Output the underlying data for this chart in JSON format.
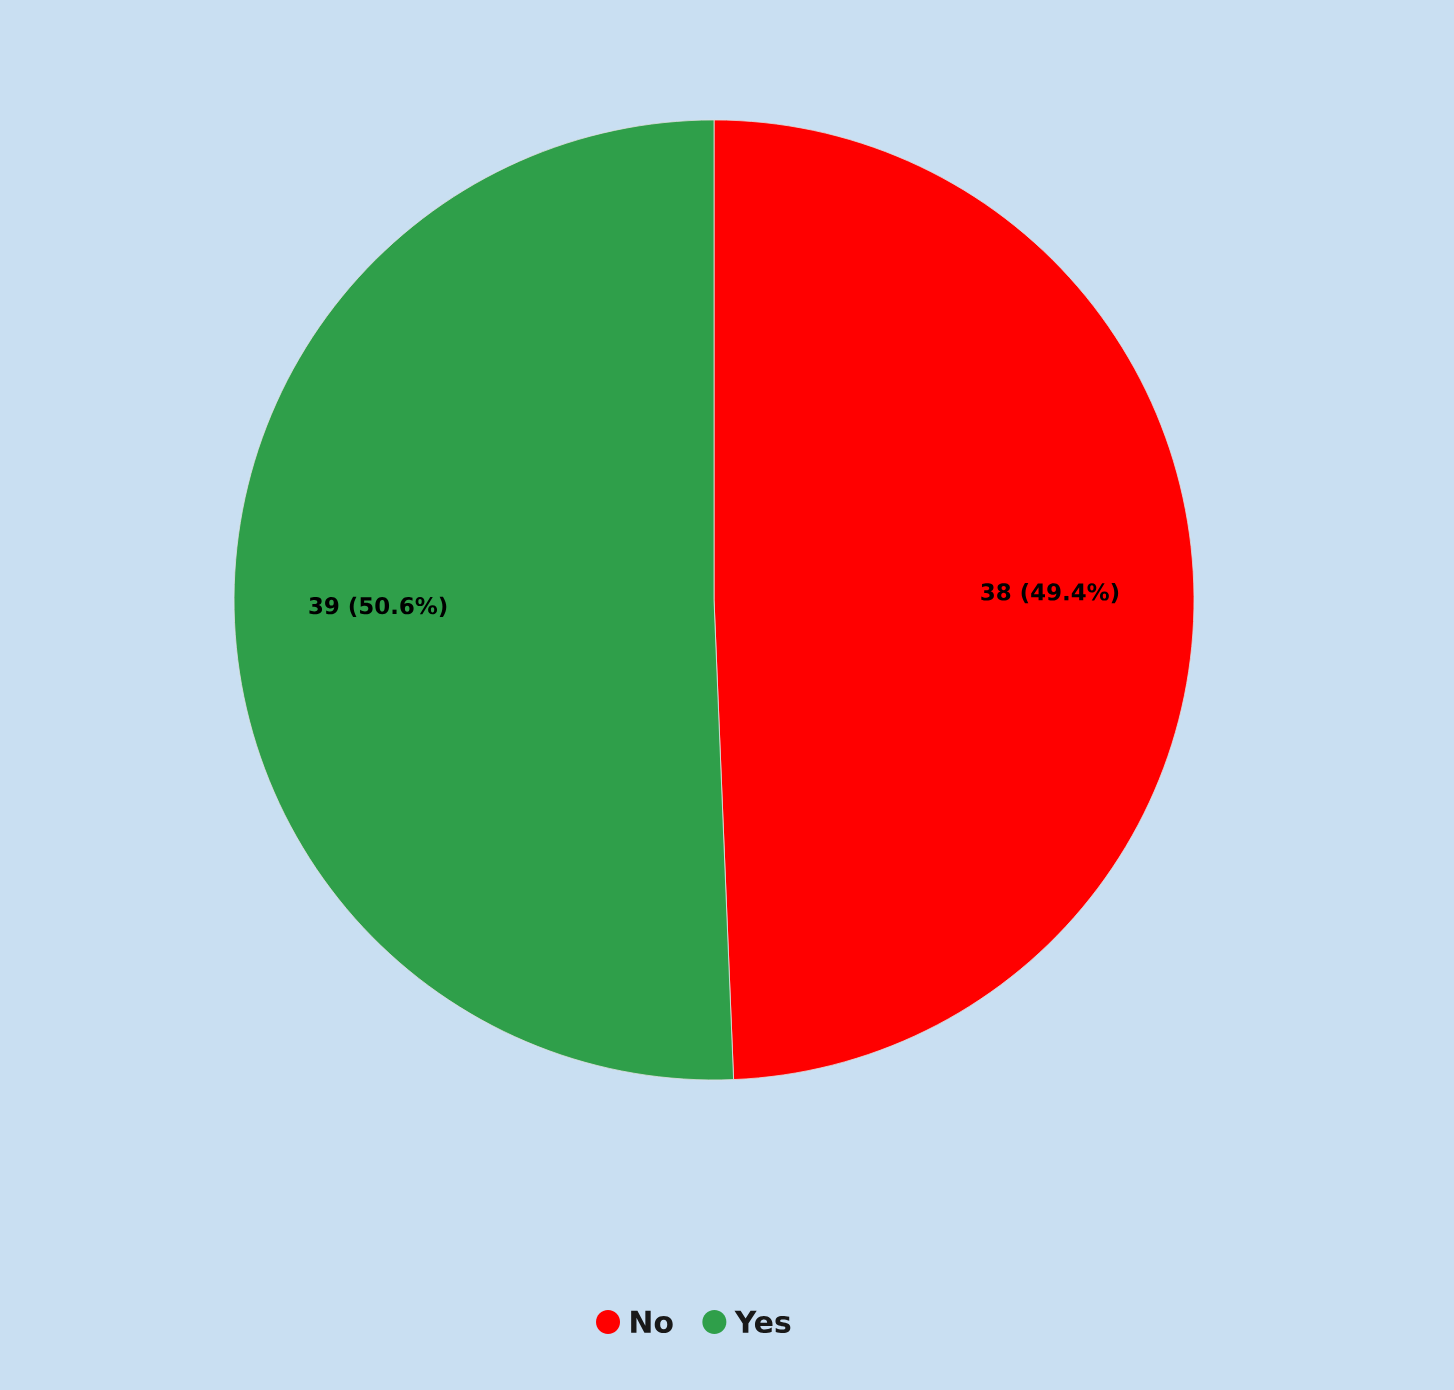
{
  "chart_data": {
    "type": "pie",
    "categories": [
      "No",
      "Yes"
    ],
    "values": [
      38,
      39
    ],
    "colors": [
      "#ff0000",
      "#2f9f4a"
    ],
    "value_labels": [
      "38 (49.4%)",
      "39 (50.6%)"
    ],
    "legend": "bottom"
  }
}
